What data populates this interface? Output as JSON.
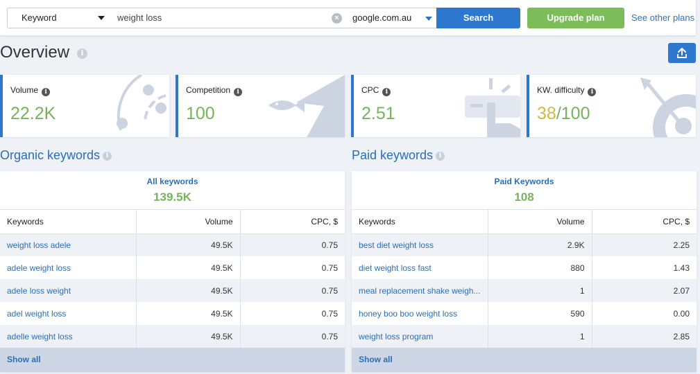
{
  "search": {
    "type_select": "Keyword",
    "query": "weight loss",
    "domain": "google.com.au",
    "search_label": "Search",
    "upgrade_label": "Upgrade plan",
    "other_plans_label": "See other plans"
  },
  "overview": {
    "title": "Overview"
  },
  "metrics": [
    {
      "label": "Volume",
      "value": "22.2K"
    },
    {
      "label": "Competition",
      "value": "100"
    },
    {
      "label": "CPC",
      "value": "2.51"
    },
    {
      "label": "KW. difficulty",
      "value_primary": "38",
      "value_rest": "/100"
    }
  ],
  "organic": {
    "title": "Organic keywords",
    "summary_label": "All keywords",
    "summary_value": "139.5K",
    "columns": [
      "Keywords",
      "Volume",
      "CPC, $"
    ],
    "rows": [
      [
        "weight loss adele",
        "49.5K",
        "0.75"
      ],
      [
        "adele weight loss",
        "49.5K",
        "0.75"
      ],
      [
        "adele loss weight",
        "49.5K",
        "0.75"
      ],
      [
        "adel weight loss",
        "49.5K",
        "0.75"
      ],
      [
        "adelle weight loss",
        "49.5K",
        "0.75"
      ]
    ],
    "show_all": "Show all"
  },
  "paid": {
    "title": "Paid keywords",
    "summary_label": "Paid Keywords",
    "summary_value": "108",
    "columns": [
      "Keywords",
      "Volume",
      "CPC, $"
    ],
    "rows": [
      [
        "best diet weight loss",
        "2.9K",
        "2.25"
      ],
      [
        "diet weight loss fast",
        "880",
        "1.43"
      ],
      [
        "meal replacement shake weigh...",
        "1",
        "2.07"
      ],
      [
        "honey boo boo weight loss",
        "590",
        "0.00"
      ],
      [
        "weight loss program",
        "1",
        "2.85"
      ]
    ],
    "show_all": "Show all"
  },
  "colors": {
    "accent": "#2e77cf",
    "green": "#76b35a",
    "yellow": "#d2b93b",
    "illustration": "#ccd3e1"
  }
}
